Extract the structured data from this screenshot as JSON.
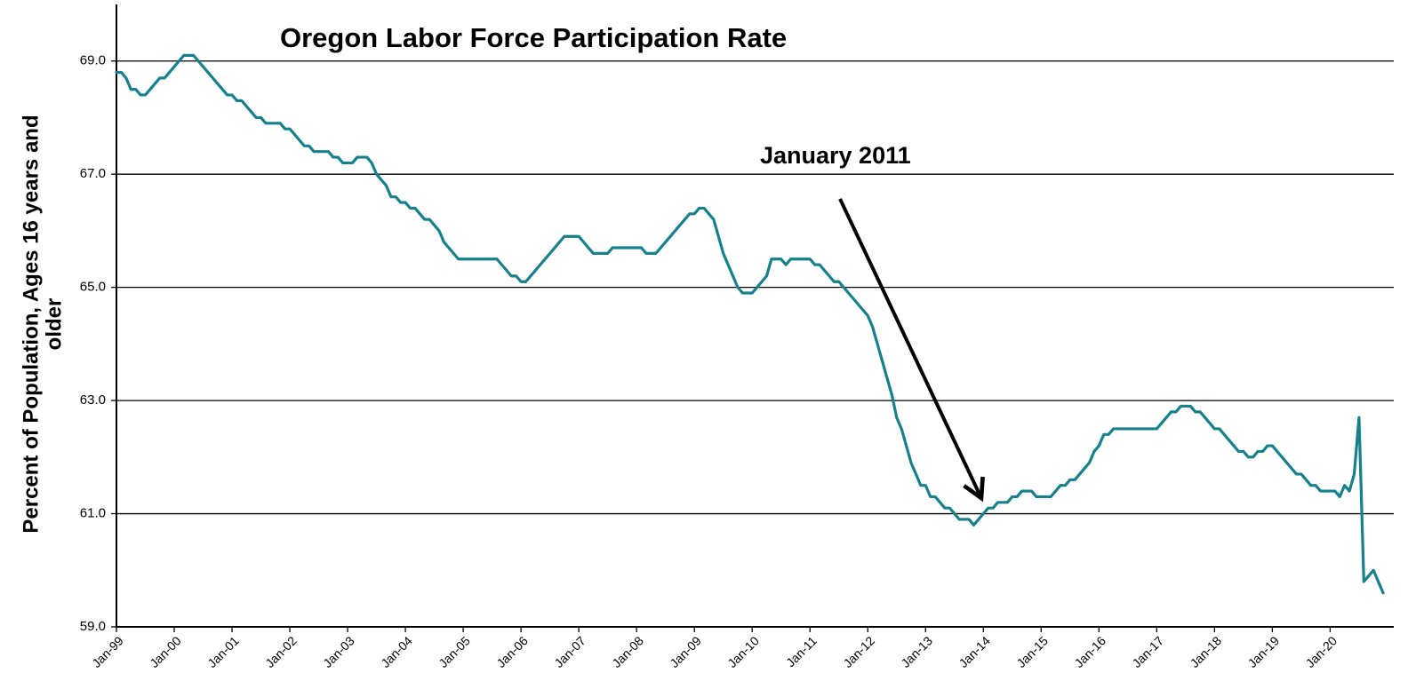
{
  "chart_data": {
    "type": "line",
    "title": "Oregon Labor Force Participation Rate",
    "ylabel_lines": [
      "Percent of Population, Ages 16 years and",
      "older"
    ],
    "annotation": "January 2011",
    "grid": true,
    "ylim": [
      59,
      70
    ],
    "yticks": [
      {
        "value": 59,
        "label": "59.0"
      },
      {
        "value": 61,
        "label": "61.0"
      },
      {
        "value": 63,
        "label": "63.0"
      },
      {
        "value": 65,
        "label": "65.0"
      },
      {
        "value": 67,
        "label": "67.0"
      },
      {
        "value": 69,
        "label": "69.0"
      }
    ],
    "categories": [
      "Jan-99",
      null,
      null,
      null,
      null,
      null,
      null,
      null,
      null,
      null,
      null,
      null,
      "Jan-00",
      null,
      null,
      null,
      null,
      null,
      null,
      null,
      null,
      null,
      null,
      null,
      "Jan-01",
      null,
      null,
      null,
      null,
      null,
      null,
      null,
      null,
      null,
      null,
      null,
      "Jan-02",
      null,
      null,
      null,
      null,
      null,
      null,
      null,
      null,
      null,
      null,
      null,
      "Jan-03",
      null,
      null,
      null,
      null,
      null,
      null,
      null,
      null,
      null,
      null,
      null,
      "Jan-04",
      null,
      null,
      null,
      null,
      null,
      null,
      null,
      null,
      null,
      null,
      null,
      "Jan-05",
      null,
      null,
      null,
      null,
      null,
      null,
      null,
      null,
      null,
      null,
      null,
      "Jan-06",
      null,
      null,
      null,
      null,
      null,
      null,
      null,
      null,
      null,
      null,
      null,
      "Jan-07",
      null,
      null,
      null,
      null,
      null,
      null,
      null,
      null,
      null,
      null,
      null,
      "Jan-08",
      null,
      null,
      null,
      null,
      null,
      null,
      null,
      null,
      null,
      null,
      null,
      "Jan-09",
      null,
      null,
      null,
      null,
      null,
      null,
      null,
      null,
      null,
      null,
      null,
      "Jan-10",
      null,
      null,
      null,
      null,
      null,
      null,
      null,
      null,
      null,
      null,
      null,
      "Jan-11",
      null,
      null,
      null,
      null,
      null,
      null,
      null,
      null,
      null,
      null,
      null,
      "Jan-12",
      null,
      null,
      null,
      null,
      null,
      null,
      null,
      null,
      null,
      null,
      null,
      "Jan-13",
      null,
      null,
      null,
      null,
      null,
      null,
      null,
      null,
      null,
      null,
      null,
      "Jan-14",
      null,
      null,
      null,
      null,
      null,
      null,
      null,
      null,
      null,
      null,
      null,
      "Jan-15",
      null,
      null,
      null,
      null,
      null,
      null,
      null,
      null,
      null,
      null,
      null,
      "Jan-16",
      null,
      null,
      null,
      null,
      null,
      null,
      null,
      null,
      null,
      null,
      null,
      "Jan-17",
      null,
      null,
      null,
      null,
      null,
      null,
      null,
      null,
      null,
      null,
      null,
      "Jan-18",
      null,
      null,
      null,
      null,
      null,
      null,
      null,
      null,
      null,
      null,
      null,
      "Jan-19",
      null,
      null,
      null,
      null,
      null,
      null,
      null,
      null,
      null,
      null,
      null,
      "Jan-20",
      null,
      null,
      null,
      null,
      null,
      null,
      null,
      null,
      null,
      null,
      null
    ],
    "series": [
      {
        "color": "#17808a",
        "values": [
          68.8,
          68.8,
          68.7,
          68.5,
          68.5,
          68.4,
          68.4,
          68.5,
          68.6,
          68.7,
          68.7,
          68.8,
          68.9,
          69.0,
          69.1,
          69.1,
          69.1,
          69.0,
          68.9,
          68.8,
          68.7,
          68.6,
          68.5,
          68.4,
          68.4,
          68.3,
          68.3,
          68.2,
          68.1,
          68.0,
          68.0,
          67.9,
          67.9,
          67.9,
          67.9,
          67.8,
          67.8,
          67.7,
          67.6,
          67.5,
          67.5,
          67.4,
          67.4,
          67.4,
          67.4,
          67.3,
          67.3,
          67.2,
          67.2,
          67.2,
          67.3,
          67.3,
          67.3,
          67.2,
          67.0,
          66.9,
          66.8,
          66.6,
          66.6,
          66.5,
          66.5,
          66.4,
          66.4,
          66.3,
          66.2,
          66.2,
          66.1,
          66.0,
          65.8,
          65.7,
          65.6,
          65.5,
          65.5,
          65.5,
          65.5,
          65.5,
          65.5,
          65.5,
          65.5,
          65.5,
          65.4,
          65.3,
          65.2,
          65.2,
          65.1,
          65.1,
          65.2,
          65.3,
          65.4,
          65.5,
          65.6,
          65.7,
          65.8,
          65.9,
          65.9,
          65.9,
          65.9,
          65.8,
          65.7,
          65.6,
          65.6,
          65.6,
          65.6,
          65.7,
          65.7,
          65.7,
          65.7,
          65.7,
          65.7,
          65.7,
          65.6,
          65.6,
          65.6,
          65.7,
          65.8,
          65.9,
          66.0,
          66.1,
          66.2,
          66.3,
          66.3,
          66.4,
          66.4,
          66.3,
          66.2,
          65.9,
          65.6,
          65.4,
          65.2,
          65.0,
          64.9,
          64.9,
          64.9,
          65.0,
          65.1,
          65.2,
          65.5,
          65.5,
          65.5,
          65.4,
          65.5,
          65.5,
          65.5,
          65.5,
          65.5,
          65.4,
          65.4,
          65.3,
          65.2,
          65.1,
          65.1,
          65.0,
          64.9,
          64.8,
          64.7,
          64.6,
          64.5,
          64.3,
          64.0,
          63.7,
          63.4,
          63.1,
          62.7,
          62.5,
          62.2,
          61.9,
          61.7,
          61.5,
          61.5,
          61.3,
          61.3,
          61.2,
          61.1,
          61.1,
          61.0,
          60.9,
          60.9,
          60.9,
          60.8,
          60.9,
          61.0,
          61.1,
          61.1,
          61.2,
          61.2,
          61.2,
          61.3,
          61.3,
          61.4,
          61.4,
          61.4,
          61.3,
          61.3,
          61.3,
          61.3,
          61.4,
          61.5,
          61.5,
          61.6,
          61.6,
          61.7,
          61.8,
          61.9,
          62.1,
          62.2,
          62.4,
          62.4,
          62.5,
          62.5,
          62.5,
          62.5,
          62.5,
          62.5,
          62.5,
          62.5,
          62.5,
          62.5,
          62.6,
          62.7,
          62.8,
          62.8,
          62.9,
          62.9,
          62.9,
          62.8,
          62.8,
          62.7,
          62.6,
          62.5,
          62.5,
          62.4,
          62.3,
          62.2,
          62.1,
          62.1,
          62.0,
          62.0,
          62.1,
          62.1,
          62.2,
          62.2,
          62.1,
          62.0,
          61.9,
          61.8,
          61.7,
          61.7,
          61.6,
          61.5,
          61.5,
          61.4,
          61.4,
          61.4,
          61.4,
          61.3,
          61.5,
          61.4,
          61.7,
          62.7,
          59.8,
          59.9,
          60.0,
          59.8,
          59.6
        ]
      }
    ]
  }
}
